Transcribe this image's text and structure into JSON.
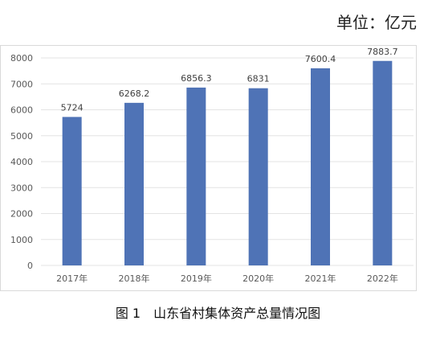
{
  "unit_label": "单位：亿元",
  "caption": {
    "number": "图 1",
    "title": "山东省村集体资产总量情况图"
  },
  "colors": {
    "bar": "#4f73b6",
    "grid": "#e3e3e3",
    "axis_text": "#595959",
    "label_text": "#404040"
  },
  "chart_data": {
    "type": "bar",
    "categories": [
      "2017年",
      "2018年",
      "2019年",
      "2020年",
      "2021年",
      "2022年"
    ],
    "values": [
      5724,
      6268.2,
      6856.3,
      6831,
      7600.4,
      7883.7
    ],
    "data_labels": [
      "5724",
      "6268.2",
      "6856.3",
      "6831",
      "7600.4",
      "7883.7"
    ],
    "title": "",
    "xlabel": "",
    "ylabel": "",
    "ylim": [
      0,
      8000
    ],
    "yticks": [
      "0",
      "1000",
      "2000",
      "3000",
      "4000",
      "5000",
      "6000",
      "7000",
      "8000"
    ],
    "grid": true,
    "legend": "none"
  }
}
